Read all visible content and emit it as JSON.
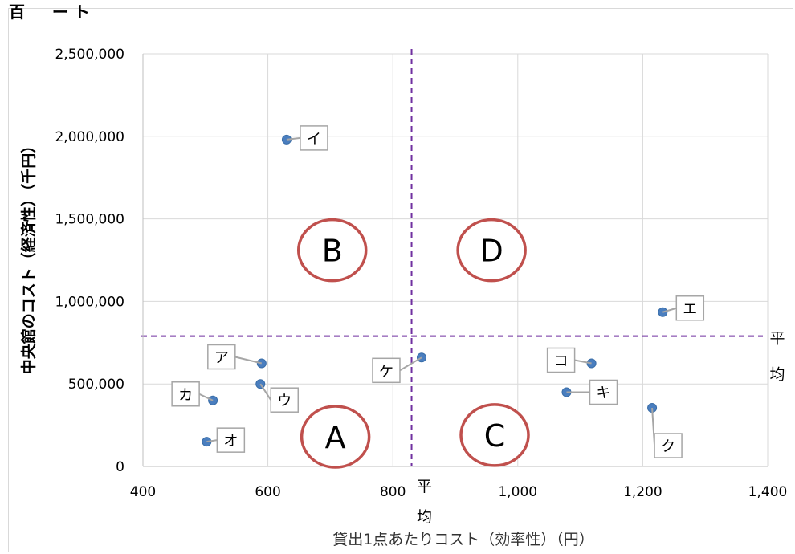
{
  "top_fragment": "百 　 ー ト",
  "chart_data": {
    "type": "scatter",
    "xlabel": "貸出1点あたりコスト（効率性）（円）",
    "ylabel": "中央館のコスト（経済性）（千円）",
    "xlim": [
      400,
      1400
    ],
    "ylim": [
      0,
      2500000
    ],
    "x_ticks": [
      400,
      600,
      800,
      1000,
      1200,
      1400
    ],
    "x_tick_labels": [
      "400",
      "600",
      "800",
      "1,000",
      "1,200",
      "1,400"
    ],
    "y_ticks": [
      0,
      500000,
      1000000,
      1500000,
      2000000,
      2500000
    ],
    "y_tick_labels": [
      "0",
      "500,000",
      "1,000,000",
      "1,500,000",
      "2,000,000",
      "2,500,000"
    ],
    "grid": true,
    "points": [
      {
        "label": "ア",
        "x": 590,
        "y": 625000
      },
      {
        "label": "イ",
        "x": 630,
        "y": 1980000
      },
      {
        "label": "ウ",
        "x": 588,
        "y": 500000
      },
      {
        "label": "エ",
        "x": 1232,
        "y": 935000
      },
      {
        "label": "オ",
        "x": 502,
        "y": 150000
      },
      {
        "label": "カ",
        "x": 512,
        "y": 400000
      },
      {
        "label": "キ",
        "x": 1078,
        "y": 450000
      },
      {
        "label": "ク",
        "x": 1215,
        "y": 355000
      },
      {
        "label": "ケ",
        "x": 846,
        "y": 660000
      },
      {
        "label": "コ",
        "x": 1118,
        "y": 625000
      }
    ],
    "average_lines": {
      "x": 830,
      "y": 790000,
      "color": "#7030a0"
    },
    "average_label": "平均",
    "quadrant_labels": [
      {
        "label": "B",
        "x": 703,
        "y": 1310000
      },
      {
        "label": "D",
        "x": 958,
        "y": 1310000
      },
      {
        "label": "A",
        "x": 708,
        "y": 180000
      },
      {
        "label": "C",
        "x": 963,
        "y": 190000
      }
    ],
    "colors": {
      "point": "#4a7ebf",
      "point_edge": "#3a6ea8",
      "quadrant_circle": "#c0504d",
      "grid": "#d9d9d9",
      "callout_border": "#a6a6a6"
    }
  }
}
